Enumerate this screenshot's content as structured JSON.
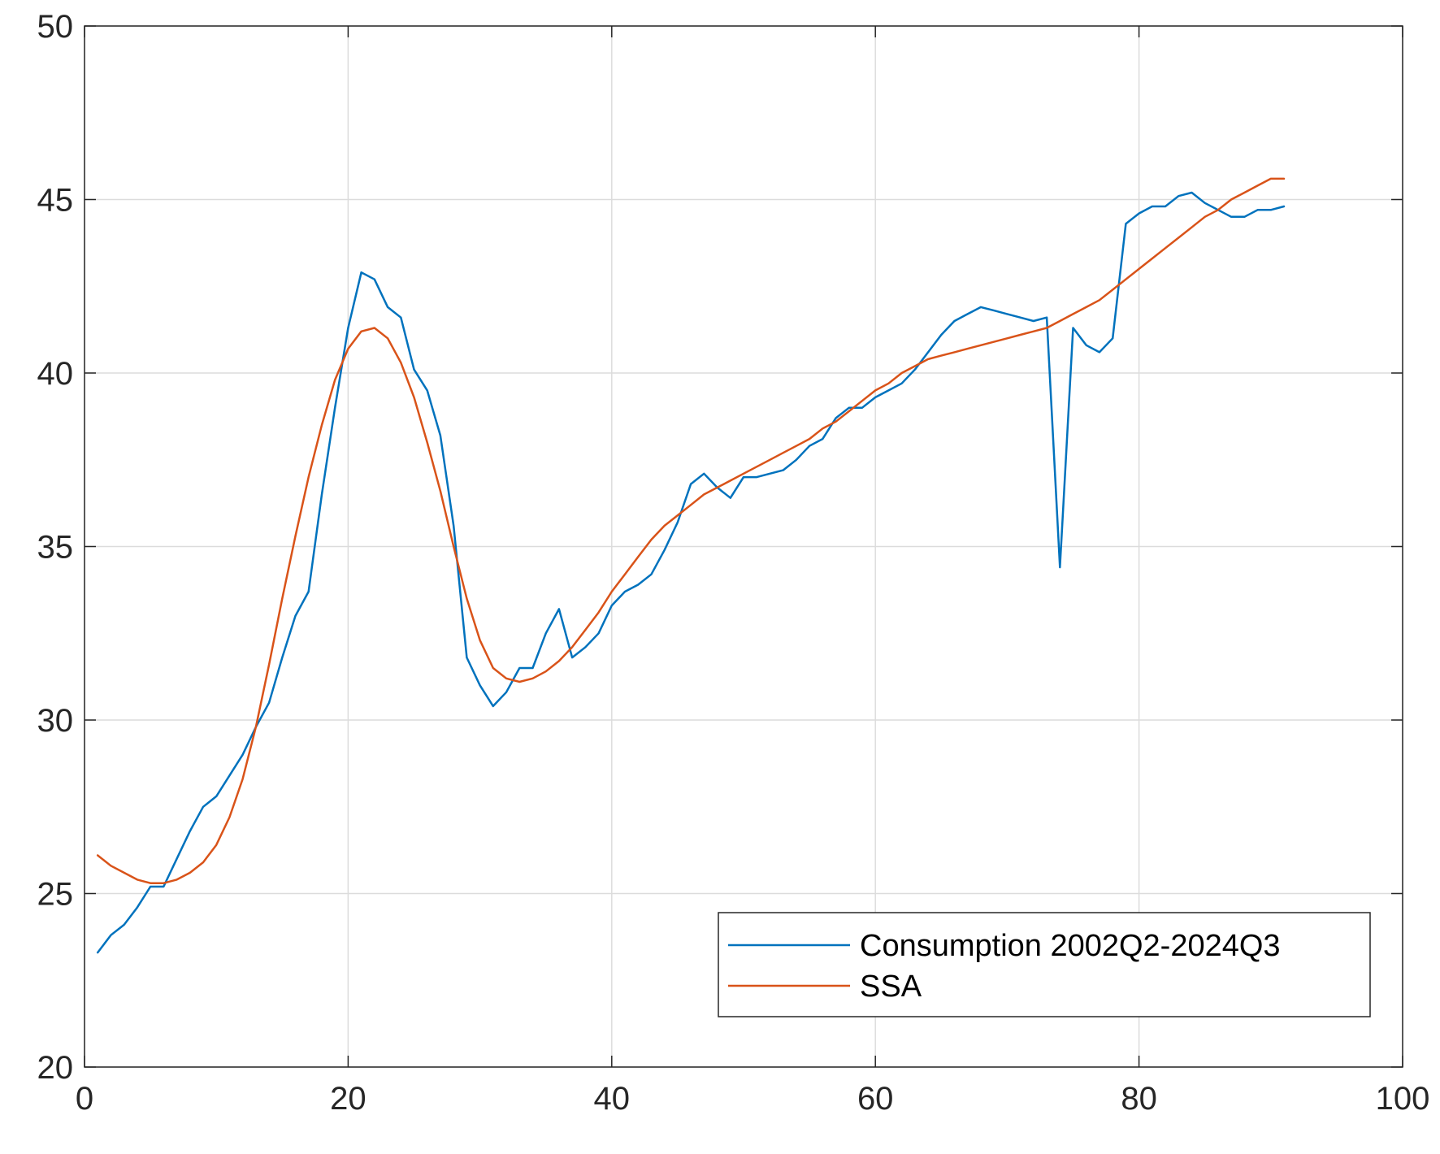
{
  "chart_data": {
    "type": "line",
    "title": "",
    "xlabel": "",
    "ylabel": "",
    "xlim": [
      0,
      100
    ],
    "ylim": [
      20,
      50
    ],
    "xticks": [
      0,
      20,
      40,
      60,
      80,
      100
    ],
    "yticks": [
      20,
      25,
      30,
      35,
      40,
      45,
      50
    ],
    "xtick_labels": [
      "0",
      "20",
      "40",
      "60",
      "80",
      "100"
    ],
    "ytick_labels": [
      "20",
      "25",
      "30",
      "35",
      "40",
      "45",
      "50"
    ],
    "grid": true,
    "legend_position": "bottom-right",
    "series": [
      {
        "name": "Consumption 2002Q2-2024Q3",
        "color": "#0072BD",
        "x": [
          1,
          2,
          3,
          4,
          5,
          6,
          7,
          8,
          9,
          10,
          11,
          12,
          13,
          14,
          15,
          16,
          17,
          18,
          19,
          20,
          21,
          22,
          23,
          24,
          25,
          26,
          27,
          28,
          29,
          30,
          31,
          32,
          33,
          34,
          35,
          36,
          37,
          38,
          39,
          40,
          41,
          42,
          43,
          44,
          45,
          46,
          47,
          48,
          49,
          50,
          51,
          52,
          53,
          54,
          55,
          56,
          57,
          58,
          59,
          60,
          61,
          62,
          63,
          64,
          65,
          66,
          67,
          68,
          69,
          70,
          71,
          72,
          73,
          74,
          75,
          76,
          77,
          78,
          79,
          80,
          81,
          82,
          83,
          84,
          85,
          86,
          87,
          88,
          89,
          90,
          91
        ],
        "y": [
          23.3,
          23.8,
          24.1,
          24.6,
          25.2,
          25.2,
          26.0,
          26.8,
          27.5,
          27.8,
          28.4,
          29.0,
          29.8,
          30.5,
          31.8,
          33.0,
          33.7,
          36.5,
          39.0,
          41.3,
          42.9,
          42.7,
          41.9,
          41.6,
          40.1,
          39.5,
          38.2,
          35.6,
          31.8,
          31.0,
          30.4,
          30.8,
          31.5,
          31.5,
          32.5,
          33.2,
          31.8,
          32.1,
          32.5,
          33.3,
          33.7,
          33.9,
          34.2,
          34.9,
          35.7,
          36.8,
          37.1,
          36.7,
          36.4,
          37.0,
          37.0,
          37.1,
          37.2,
          37.5,
          37.9,
          38.1,
          38.7,
          39.0,
          39.0,
          39.3,
          39.5,
          39.7,
          40.1,
          40.6,
          41.1,
          41.5,
          41.7,
          41.9,
          41.8,
          41.7,
          41.6,
          41.5,
          41.6,
          34.4,
          41.3,
          40.8,
          40.6,
          41.0,
          44.3,
          44.6,
          44.8,
          44.8,
          45.1,
          45.2,
          44.9,
          44.7,
          44.5,
          44.5,
          44.7,
          44.7,
          44.8
        ]
      },
      {
        "name": "SSA",
        "color": "#D95319",
        "x": [
          1,
          2,
          3,
          4,
          5,
          6,
          7,
          8,
          9,
          10,
          11,
          12,
          13,
          14,
          15,
          16,
          17,
          18,
          19,
          20,
          21,
          22,
          23,
          24,
          25,
          26,
          27,
          28,
          29,
          30,
          31,
          32,
          33,
          34,
          35,
          36,
          37,
          38,
          39,
          40,
          41,
          42,
          43,
          44,
          45,
          46,
          47,
          48,
          49,
          50,
          51,
          52,
          53,
          54,
          55,
          56,
          57,
          58,
          59,
          60,
          61,
          62,
          63,
          64,
          65,
          66,
          67,
          68,
          69,
          70,
          71,
          72,
          73,
          74,
          75,
          76,
          77,
          78,
          79,
          80,
          81,
          82,
          83,
          84,
          85,
          86,
          87,
          88,
          89,
          90,
          91
        ],
        "y": [
          26.1,
          25.8,
          25.6,
          25.4,
          25.3,
          25.3,
          25.4,
          25.6,
          25.9,
          26.4,
          27.2,
          28.3,
          29.8,
          31.6,
          33.5,
          35.3,
          37.0,
          38.5,
          39.8,
          40.7,
          41.2,
          41.3,
          41.0,
          40.3,
          39.3,
          38.0,
          36.6,
          35.0,
          33.5,
          32.3,
          31.5,
          31.2,
          31.1,
          31.2,
          31.4,
          31.7,
          32.1,
          32.6,
          33.1,
          33.7,
          34.2,
          34.7,
          35.2,
          35.6,
          35.9,
          36.2,
          36.5,
          36.7,
          36.9,
          37.1,
          37.3,
          37.5,
          37.7,
          37.9,
          38.1,
          38.4,
          38.6,
          38.9,
          39.2,
          39.5,
          39.7,
          40.0,
          40.2,
          40.4,
          40.5,
          40.6,
          40.7,
          40.8,
          40.9,
          41.0,
          41.1,
          41.2,
          41.3,
          41.5,
          41.7,
          41.9,
          42.1,
          42.4,
          42.7,
          43.0,
          43.3,
          43.6,
          43.9,
          44.2,
          44.5,
          44.7,
          45.0,
          45.2,
          45.4,
          45.6,
          45.6
        ]
      }
    ]
  }
}
